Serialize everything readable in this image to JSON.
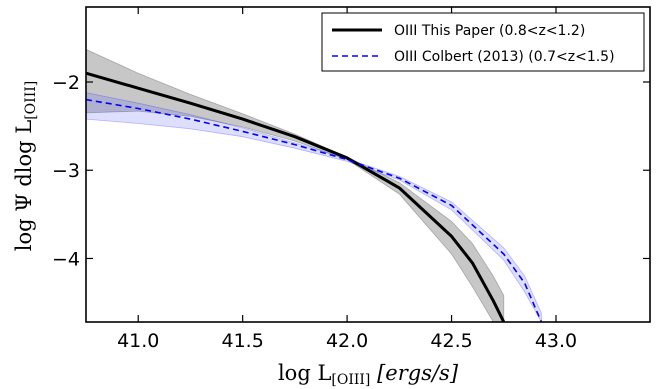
{
  "chart_data": {
    "type": "line",
    "title": "",
    "xlabel": "log L[OIII] [ergs/s]",
    "ylabel": "log Ψ dlog L[OIII]",
    "xlim": [
      40.75,
      43.45
    ],
    "ylim": [
      -4.72,
      -1.15
    ],
    "xticks": [
      41.0,
      41.5,
      42.0,
      42.5,
      43.0
    ],
    "xtick_labels": [
      "41.0",
      "41.5",
      "42.0",
      "42.5",
      "43.0"
    ],
    "yticks": [
      -2,
      -3,
      -4
    ],
    "ytick_labels": [
      "−2",
      "−3",
      "−4"
    ],
    "grid": false,
    "legend_position": "top-right",
    "series": [
      {
        "name": "OIII This Paper (0.8<z<1.2)",
        "color": "#000000",
        "style": "solid",
        "x": [
          40.75,
          41.0,
          41.25,
          41.5,
          41.75,
          42.0,
          42.25,
          42.5,
          42.6,
          42.7,
          42.75
        ],
        "y": [
          -1.9,
          -2.07,
          -2.24,
          -2.42,
          -2.62,
          -2.86,
          -3.2,
          -3.75,
          -4.05,
          -4.48,
          -4.72
        ],
        "band_upper": [
          -1.63,
          -1.9,
          -2.14,
          -2.36,
          -2.59,
          -2.85,
          -3.14,
          -3.58,
          -3.83,
          -4.2,
          -4.42
        ],
        "band_lower": [
          -2.35,
          -2.33,
          -2.39,
          -2.51,
          -2.67,
          -2.88,
          -3.27,
          -3.95,
          -4.32,
          -4.72,
          -4.72
        ]
      },
      {
        "name": "OIII Colbert (2013) (0.7<z<1.5)",
        "color": "#0000ff",
        "style": "dashed",
        "x": [
          40.75,
          41.0,
          41.25,
          41.5,
          41.75,
          42.0,
          42.25,
          42.5,
          42.75,
          42.85,
          42.93
        ],
        "y": [
          -2.2,
          -2.3,
          -2.42,
          -2.56,
          -2.71,
          -2.88,
          -3.09,
          -3.4,
          -3.95,
          -4.28,
          -4.72
        ],
        "band_upper": [
          -2.12,
          -2.24,
          -2.37,
          -2.52,
          -2.69,
          -2.87,
          -3.07,
          -3.36,
          -3.88,
          -4.2,
          -4.62
        ],
        "band_lower": [
          -2.42,
          -2.47,
          -2.53,
          -2.62,
          -2.75,
          -2.9,
          -3.11,
          -3.45,
          -4.02,
          -4.38,
          -4.72
        ]
      }
    ]
  }
}
